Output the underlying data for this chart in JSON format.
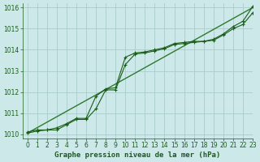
{
  "bg_color": "#cce8e8",
  "grid_color": "#aacccc",
  "line_color_dark": "#1a5c1a",
  "line_color_mid": "#2d7a2d",
  "xlabel": "Graphe pression niveau de la mer (hPa)",
  "xlim": [
    -0.5,
    23
  ],
  "ylim": [
    1009.8,
    1016.2
  ],
  "yticks": [
    1010,
    1011,
    1012,
    1013,
    1014,
    1015,
    1016
  ],
  "xticks": [
    0,
    1,
    2,
    3,
    4,
    5,
    6,
    7,
    8,
    9,
    10,
    11,
    12,
    13,
    14,
    15,
    16,
    17,
    18,
    19,
    20,
    21,
    22,
    23
  ],
  "series_jagged1_x": [
    0,
    1,
    2,
    3,
    4,
    5,
    6,
    7,
    8,
    9,
    10,
    11,
    12,
    13,
    14,
    15,
    16,
    17,
    18,
    19,
    20,
    21,
    22,
    23
  ],
  "series_jagged1_y": [
    1010.1,
    1010.2,
    1010.2,
    1010.3,
    1010.5,
    1010.75,
    1010.75,
    1011.8,
    1012.15,
    1012.2,
    1013.65,
    1013.85,
    1013.9,
    1014.0,
    1014.1,
    1014.3,
    1014.35,
    1014.4,
    1014.4,
    1014.5,
    1014.75,
    1015.1,
    1015.35,
    1016.05
  ],
  "series_jagged2_x": [
    0,
    1,
    2,
    3,
    4,
    5,
    6,
    7,
    8,
    9,
    10,
    11,
    12,
    13,
    14,
    15,
    16,
    17,
    18,
    19,
    20,
    21,
    22,
    23
  ],
  "series_jagged2_y": [
    1010.05,
    1010.15,
    1010.2,
    1010.2,
    1010.45,
    1010.7,
    1010.7,
    1011.2,
    1012.1,
    1012.1,
    1013.3,
    1013.8,
    1013.85,
    1013.95,
    1014.05,
    1014.25,
    1014.3,
    1014.35,
    1014.4,
    1014.45,
    1014.7,
    1015.0,
    1015.2,
    1015.75
  ],
  "series_trend_x": [
    0,
    23
  ],
  "series_trend_y": [
    1010.05,
    1016.0
  ],
  "marker": "+",
  "marker_size": 3.5,
  "marker_lw": 0.8,
  "linewidth_jagged": 0.8,
  "linewidth_trend": 1.0,
  "label_fontsize": 6.5,
  "tick_fontsize": 5.5
}
